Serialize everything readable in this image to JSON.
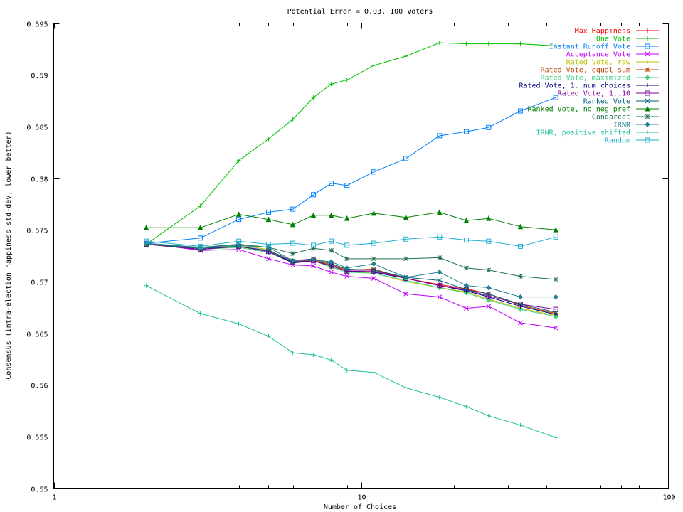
{
  "chart_data": {
    "type": "line",
    "title": "Potential Error = 0.03, 100 Voters",
    "xlabel": "Number of Choices",
    "ylabel": "Consensus (intra-election happiness std-dev, lower better)",
    "x_scale": "log",
    "xlim": [
      1,
      100
    ],
    "ylim": [
      0.55,
      0.595
    ],
    "x_ticks": [
      1,
      10,
      100
    ],
    "y_ticks": [
      0.55,
      0.555,
      0.56,
      0.565,
      0.57,
      0.575,
      0.58,
      0.585,
      0.59,
      0.595
    ],
    "grid": false,
    "legend_position": "top-right",
    "x": [
      2,
      3,
      4,
      5,
      6,
      7,
      8,
      9,
      11,
      14,
      18,
      22,
      26,
      33,
      43
    ],
    "series": [
      {
        "name": "Max Happiness",
        "color": "#ff0000",
        "marker": "plus",
        "values": [
          0.5736,
          0.5731,
          0.5734,
          0.5729,
          0.5719,
          0.5721,
          0.5716,
          0.5711,
          0.5711,
          0.5703,
          0.5697,
          0.5693,
          0.5688,
          0.5677,
          0.5669
        ]
      },
      {
        "name": "One Vote",
        "color": "#00c000",
        "marker": "plus",
        "values": [
          0.5736,
          0.5773,
          0.5817,
          0.5838,
          0.5857,
          0.5878,
          0.5891,
          0.5895,
          0.5909,
          0.5918,
          0.5931,
          0.593,
          0.593,
          0.593,
          0.5928
        ]
      },
      {
        "name": "Instant Runoff Vote",
        "color": "#0080ff",
        "marker": "square",
        "values": [
          0.5737,
          0.5742,
          0.576,
          0.5767,
          0.577,
          0.5784,
          0.5795,
          0.5793,
          0.5806,
          0.5819,
          0.5841,
          0.5845,
          0.5849,
          0.5865,
          0.5878
        ]
      },
      {
        "name": "Acceptance Vote",
        "color": "#c000ff",
        "marker": "x",
        "values": [
          0.5737,
          0.573,
          0.5731,
          0.5722,
          0.5716,
          0.5715,
          0.5709,
          0.5705,
          0.5703,
          0.5688,
          0.5685,
          0.5674,
          0.5676,
          0.566,
          0.5655
        ]
      },
      {
        "name": "Rated Vote, raw",
        "color": "#c0c000",
        "marker": "plus",
        "values": [
          0.5736,
          0.5732,
          0.5735,
          0.5731,
          0.5718,
          0.572,
          0.5716,
          0.571,
          0.5708,
          0.57,
          0.5694,
          0.569,
          0.5683,
          0.5674,
          0.5667
        ]
      },
      {
        "name": "Rated Vote, equal sum",
        "color": "#c04000",
        "marker": "star",
        "values": [
          0.5736,
          0.5731,
          0.5734,
          0.5729,
          0.5719,
          0.5721,
          0.5716,
          0.5711,
          0.5712,
          0.5703,
          0.5696,
          0.5692,
          0.5688,
          0.5677,
          0.5669
        ]
      },
      {
        "name": "Rated Vote, maximized",
        "color": "#40d080",
        "marker": "diamond",
        "values": [
          0.5736,
          0.5731,
          0.5733,
          0.5728,
          0.5718,
          0.572,
          0.5714,
          0.5709,
          0.5708,
          0.5701,
          0.5694,
          0.5689,
          0.5682,
          0.5673,
          0.5666
        ]
      },
      {
        "name": "Rated Vote, 1..num choices",
        "color": "#000080",
        "marker": "plus",
        "values": [
          0.5736,
          0.5731,
          0.5734,
          0.5729,
          0.5718,
          0.572,
          0.5715,
          0.571,
          0.5709,
          0.5703,
          0.5696,
          0.5691,
          0.5685,
          0.5676,
          0.5668
        ]
      },
      {
        "name": "Rated Vote, 1..10",
        "color": "#8000a0",
        "marker": "square",
        "values": [
          0.5736,
          0.5731,
          0.5734,
          0.5729,
          0.5719,
          0.572,
          0.5715,
          0.571,
          0.571,
          0.5703,
          0.5696,
          0.5692,
          0.5686,
          0.5678,
          0.5673
        ]
      },
      {
        "name": "Ranked Vote",
        "color": "#006080",
        "marker": "x",
        "values": [
          0.5736,
          0.5732,
          0.5734,
          0.573,
          0.572,
          0.5722,
          0.5717,
          0.5712,
          0.5711,
          0.5704,
          0.5701,
          0.5692,
          0.5688,
          0.5678,
          0.567
        ]
      },
      {
        "name": "Ranked Vote, no neg pref",
        "color": "#008000",
        "marker": "triangle",
        "values": [
          0.5752,
          0.5752,
          0.5765,
          0.576,
          0.5755,
          0.5764,
          0.5764,
          0.5761,
          0.5766,
          0.5762,
          0.5767,
          0.5759,
          0.5761,
          0.5753,
          0.575
        ]
      },
      {
        "name": "Condorcet",
        "color": "#207050",
        "marker": "star",
        "values": [
          0.5736,
          0.5733,
          0.5736,
          0.5733,
          0.5727,
          0.5732,
          0.573,
          0.5722,
          0.5722,
          0.5722,
          0.5723,
          0.5713,
          0.5711,
          0.5705,
          0.5702
        ]
      },
      {
        "name": "IRNR",
        "color": "#208090",
        "marker": "diamond",
        "values": [
          0.5737,
          0.5733,
          0.5735,
          0.5733,
          0.572,
          0.5721,
          0.5719,
          0.5713,
          0.5717,
          0.5704,
          0.5709,
          0.5696,
          0.5694,
          0.5685,
          0.5685
        ]
      },
      {
        "name": "IRNR, positive shifted",
        "color": "#20c0a0",
        "marker": "plus",
        "values": [
          0.5696,
          0.5669,
          0.5659,
          0.5647,
          0.5631,
          0.5629,
          0.5624,
          0.5614,
          0.5612,
          0.5597,
          0.5588,
          0.5579,
          0.557,
          0.5561,
          0.5549
        ]
      },
      {
        "name": "Random",
        "color": "#20b0d0",
        "marker": "square",
        "values": [
          0.5739,
          0.5734,
          0.5739,
          0.5736,
          0.5737,
          0.5735,
          0.5739,
          0.5735,
          0.5737,
          0.5741,
          0.5743,
          0.574,
          0.5739,
          0.5734,
          0.5743
        ]
      }
    ]
  }
}
